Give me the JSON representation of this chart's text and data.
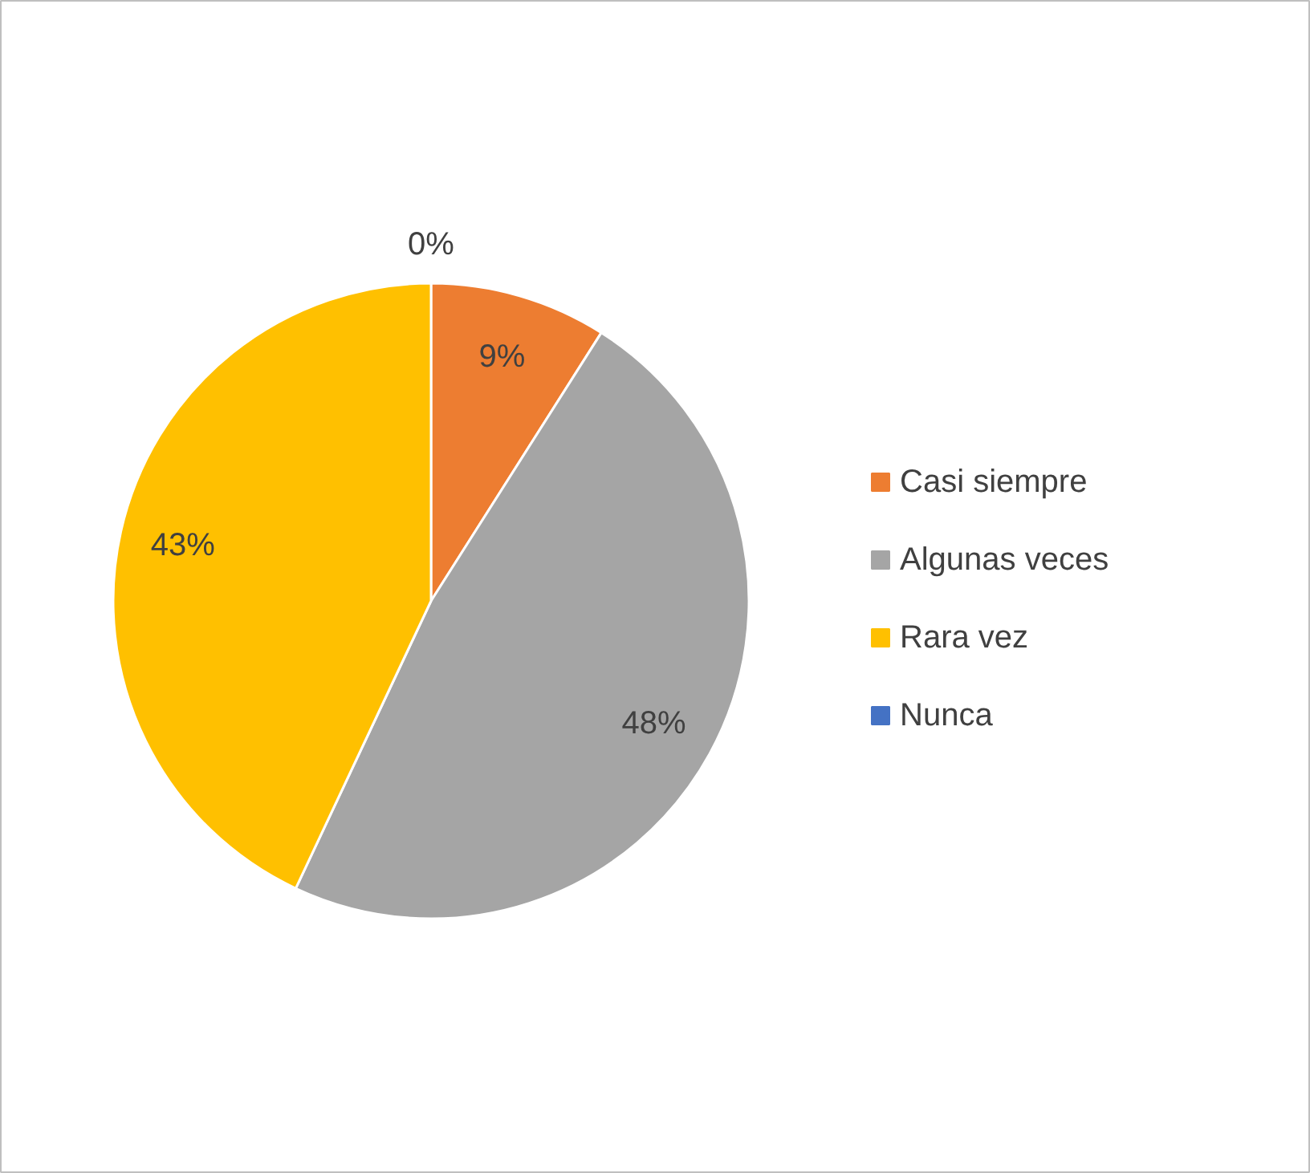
{
  "chart_data": {
    "type": "pie",
    "categories": [
      "Casi siempre",
      "Algunas veces",
      "Rara vez",
      "Nunca"
    ],
    "values": [
      9,
      48,
      43,
      0
    ],
    "colors": [
      "#ed7d31",
      "#a5a5a5",
      "#ffc000",
      "#4472c4"
    ],
    "value_labels": [
      "9%",
      "48%",
      "43%",
      "0%"
    ],
    "legend": "right"
  }
}
